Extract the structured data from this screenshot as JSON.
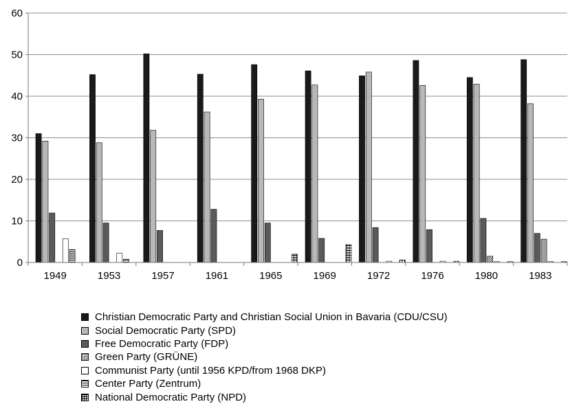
{
  "chart_data": {
    "type": "bar",
    "title": "",
    "xlabel": "",
    "ylabel": "",
    "ylim": [
      0,
      60
    ],
    "yticks": [
      0,
      10,
      20,
      30,
      40,
      50,
      60
    ],
    "grid": true,
    "legend_position": "bottom",
    "categories": [
      "1949",
      "1953",
      "1957",
      "1961",
      "1965",
      "1969",
      "1972",
      "1976",
      "1980",
      "1983"
    ],
    "series": [
      {
        "name": "Christian Democratic Party and Christian Social Union in Bavaria (CDU/CSU)",
        "pattern": "solid-black",
        "values": [
          31.0,
          45.2,
          50.2,
          45.3,
          47.6,
          46.1,
          44.9,
          48.6,
          44.5,
          48.8
        ]
      },
      {
        "name": "Social Democratic Party (SPD)",
        "pattern": "solid-lightgray",
        "values": [
          29.2,
          28.8,
          31.8,
          36.2,
          39.3,
          42.7,
          45.8,
          42.6,
          42.9,
          38.2
        ]
      },
      {
        "name": "Free Democratic Party (FDP)",
        "pattern": "solid-darkgray",
        "values": [
          11.9,
          9.5,
          7.7,
          12.8,
          9.5,
          5.8,
          8.4,
          7.9,
          10.6,
          7.0
        ]
      },
      {
        "name": "Green Party (GRÜNE)",
        "pattern": "dots",
        "values": [
          0,
          0,
          0,
          0,
          0,
          0,
          0,
          0,
          1.5,
          5.6
        ]
      },
      {
        "name": "Communist Party (until 1956 KPD/from 1968 DKP)",
        "pattern": "hollow",
        "values": [
          5.7,
          2.2,
          0,
          0,
          0,
          0,
          0.3,
          0.3,
          0.2,
          0.2
        ]
      },
      {
        "name": "Center Party (Zentrum)",
        "pattern": "horizontal-lines",
        "values": [
          3.1,
          0.8,
          0,
          0,
          0,
          0,
          0,
          0,
          0,
          0
        ]
      },
      {
        "name": "National Democratic Party (NPD)",
        "pattern": "grid",
        "values": [
          0,
          0,
          0,
          0,
          2.0,
          4.3,
          0.6,
          0.3,
          0.2,
          0.2
        ]
      }
    ]
  },
  "colors": {
    "cdu_csu": "#1a1a1a",
    "spd": "#b8b8b8",
    "fdp": "#5a5a5a",
    "gridline": "#8c8c8c",
    "axis": "#7a7a7a"
  }
}
